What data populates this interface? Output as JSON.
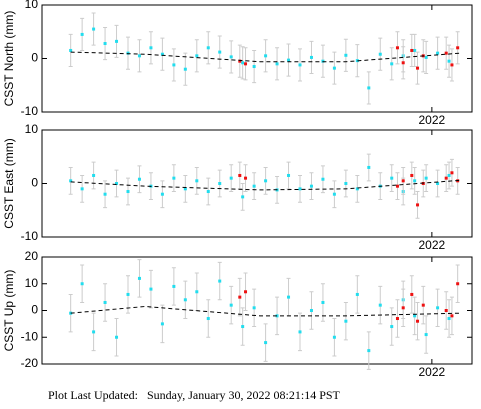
{
  "chart_data": [
    {
      "type": "scatter",
      "ylabel": "CSST North (mm)",
      "xlim": [
        2020.64,
        2022.14
      ],
      "xticks": [
        2022
      ],
      "ylim": [
        -10,
        10
      ],
      "yticks": [
        -10,
        0,
        10
      ],
      "series": [
        {
          "color": "#22ddee",
          "x": [
            2020.74,
            2020.78,
            2020.82,
            2020.86,
            2020.9,
            2020.94,
            2020.98,
            2021.02,
            2021.06,
            2021.1,
            2021.14,
            2021.18,
            2021.22,
            2021.26,
            2021.3,
            2021.34,
            2021.38,
            2021.42,
            2021.46,
            2021.5,
            2021.54,
            2021.58,
            2021.62,
            2021.66,
            2021.7,
            2021.74,
            2021.78,
            2021.82,
            2021.86,
            2021.9,
            2021.94,
            2021.98,
            2022.02,
            2022.06
          ],
          "values": [
            1.5,
            4.5,
            5.5,
            2.8,
            3.2,
            1.0,
            0.5,
            2.0,
            0.8,
            -1.2,
            -2.0,
            0.5,
            2.0,
            1.2,
            0.3,
            -0.8,
            -1.5,
            0.5,
            -1.0,
            -0.3,
            -1.2,
            0.2,
            -0.5,
            -1.8,
            0.6,
            -0.4,
            -5.5,
            0.8,
            -1.0,
            0.5,
            1.5,
            0.2,
            1.0,
            -0.5
          ],
          "errors": [
            3,
            3,
            3,
            3,
            3,
            3,
            3,
            3,
            3,
            3,
            3,
            3,
            3,
            3,
            3,
            3,
            3,
            3,
            3,
            3,
            3,
            3,
            3,
            3,
            3,
            3,
            3,
            3,
            3,
            3,
            3,
            3,
            3,
            3
          ]
        },
        {
          "color": "#ee1111",
          "x": [
            2021.33,
            2021.35,
            2021.88,
            2021.9,
            2021.93,
            2021.95,
            2021.97,
            2022.05,
            2022.07,
            2022.09
          ],
          "values": [
            -0.5,
            -1.0,
            2.0,
            -0.8,
            1.5,
            -1.8,
            0.5,
            1.0,
            -1.2,
            2.0
          ],
          "errors": [
            3,
            3,
            3,
            3,
            3,
            3,
            3,
            3,
            3,
            3
          ]
        },
        {
          "color": "#000000",
          "line": "dashed",
          "x": [
            2020.74,
            2021.0,
            2021.4,
            2021.7,
            2022.1
          ],
          "values": [
            1.2,
            0.8,
            -0.6,
            -0.6,
            1.0
          ]
        }
      ]
    },
    {
      "type": "scatter",
      "ylabel": "CSST East (mm)",
      "xlim": [
        2020.64,
        2022.14
      ],
      "xticks": [
        2022
      ],
      "ylim": [
        -10,
        10
      ],
      "yticks": [
        -10,
        0,
        10
      ],
      "series": [
        {
          "color": "#22ddee",
          "x": [
            2020.74,
            2020.78,
            2020.82,
            2020.86,
            2020.9,
            2020.94,
            2020.98,
            2021.02,
            2021.06,
            2021.1,
            2021.14,
            2021.18,
            2021.22,
            2021.26,
            2021.3,
            2021.34,
            2021.38,
            2021.42,
            2021.46,
            2021.5,
            2021.54,
            2021.58,
            2021.62,
            2021.66,
            2021.7,
            2021.74,
            2021.78,
            2021.82,
            2021.86,
            2021.9,
            2021.94,
            2021.98,
            2022.02,
            2022.06
          ],
          "values": [
            0.5,
            -1.0,
            1.5,
            -2.0,
            0.0,
            -1.5,
            0.8,
            -0.5,
            -2.0,
            1.0,
            -1.0,
            0.5,
            -1.5,
            0.0,
            1.0,
            -2.5,
            -0.5,
            0.5,
            -1.2,
            1.5,
            -1.0,
            -0.5,
            0.8,
            -2.0,
            0.0,
            -1.0,
            3.0,
            -0.5,
            1.0,
            -1.5,
            0.5,
            1.0,
            0.0,
            1.5
          ],
          "errors": [
            2.5,
            2.5,
            2.5,
            2.5,
            2.5,
            2.5,
            2.5,
            2.5,
            2.5,
            2.5,
            2.5,
            2.5,
            2.5,
            2.5,
            2.5,
            2.5,
            2.5,
            2.5,
            2.5,
            2.5,
            2.5,
            2.5,
            2.5,
            2.5,
            2.5,
            2.5,
            2.5,
            2.5,
            2.5,
            2.5,
            2.5,
            2.5,
            2.5,
            2.5
          ]
        },
        {
          "color": "#ee1111",
          "x": [
            2021.33,
            2021.35,
            2021.88,
            2021.9,
            2021.93,
            2021.95,
            2021.97,
            2022.05,
            2022.07,
            2022.09
          ],
          "values": [
            1.5,
            1.0,
            -0.5,
            0.5,
            1.5,
            -4.0,
            0.0,
            1.0,
            2.0,
            0.5
          ],
          "errors": [
            2.5,
            2.5,
            2.5,
            2.5,
            2.5,
            2.5,
            2.5,
            2.5,
            2.5,
            2.5
          ]
        },
        {
          "color": "#000000",
          "line": "dashed",
          "x": [
            2020.74,
            2021.0,
            2021.4,
            2021.7,
            2022.1
          ],
          "values": [
            0.3,
            -0.5,
            -1.2,
            -1.0,
            0.6
          ]
        }
      ]
    },
    {
      "type": "scatter",
      "ylabel": "CSST Up (mm)",
      "xlim": [
        2020.64,
        2022.14
      ],
      "xticks": [
        2022
      ],
      "ylim": [
        -20,
        20
      ],
      "yticks": [
        -20,
        -10,
        0,
        10,
        20
      ],
      "series": [
        {
          "color": "#22ddee",
          "x": [
            2020.74,
            2020.78,
            2020.82,
            2020.86,
            2020.9,
            2020.94,
            2020.98,
            2021.02,
            2021.06,
            2021.1,
            2021.14,
            2021.18,
            2021.22,
            2021.26,
            2021.3,
            2021.34,
            2021.38,
            2021.42,
            2021.46,
            2021.5,
            2021.54,
            2021.58,
            2021.62,
            2021.66,
            2021.7,
            2021.74,
            2021.78,
            2021.82,
            2021.86,
            2021.9,
            2021.94,
            2021.98,
            2022.02,
            2022.06
          ],
          "values": [
            -1,
            10,
            -8,
            3,
            -10,
            6,
            12,
            8,
            -5,
            9,
            4,
            7,
            -3,
            11,
            2,
            -6,
            1,
            -12,
            -2,
            5,
            -8,
            0,
            3,
            -10,
            -4,
            6,
            -15,
            2,
            -6,
            4,
            -2,
            -9,
            1,
            -3
          ],
          "errors": [
            7,
            7,
            7,
            7,
            7,
            7,
            7,
            7,
            7,
            7,
            7,
            7,
            7,
            7,
            7,
            7,
            7,
            7,
            7,
            7,
            7,
            7,
            7,
            7,
            7,
            7,
            7,
            7,
            7,
            7,
            7,
            7,
            7,
            7
          ]
        },
        {
          "color": "#ee1111",
          "x": [
            2021.33,
            2021.35,
            2021.88,
            2021.9,
            2021.93,
            2021.95,
            2021.97,
            2022.05,
            2022.07,
            2022.09
          ],
          "values": [
            5,
            7,
            -3,
            1,
            6,
            -4,
            2,
            0,
            -2,
            10
          ],
          "errors": [
            7,
            7,
            7,
            7,
            7,
            7,
            7,
            7,
            7,
            7
          ]
        },
        {
          "color": "#000000",
          "line": "dashed",
          "x": [
            2020.74,
            2021.0,
            2021.4,
            2021.7,
            2022.1
          ],
          "values": [
            -1,
            1.5,
            -2,
            -2,
            -1
          ]
        }
      ]
    }
  ],
  "footer": "Plot Last Updated:   Sunday, January 30, 2022 08:21:14 PST"
}
